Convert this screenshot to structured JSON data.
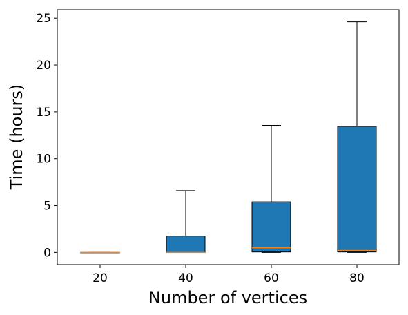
{
  "chart_data": {
    "type": "boxplot",
    "title": "",
    "xlabel": "Number of vertices",
    "ylabel": "Time (hours)",
    "categories": [
      "20",
      "40",
      "60",
      "80"
    ],
    "boxes": [
      {
        "category": "20",
        "whisker_low": 0.0,
        "q1": 0.0,
        "median": 0.0,
        "q3": 0.0,
        "whisker_high": 0.0
      },
      {
        "category": "40",
        "whisker_low": 0.0,
        "q1": 0.0,
        "median": 0.0,
        "q3": 1.75,
        "whisker_high": 6.6
      },
      {
        "category": "60",
        "whisker_low": 0.0,
        "q1": 0.05,
        "median": 0.5,
        "q3": 5.4,
        "whisker_high": 13.55
      },
      {
        "category": "80",
        "whisker_low": 0.0,
        "q1": 0.05,
        "median": 0.2,
        "q3": 13.45,
        "whisker_high": 24.6
      }
    ],
    "ylim": [
      -1.3,
      25.9
    ],
    "yticks": [
      0,
      5,
      10,
      15,
      20,
      25
    ],
    "grid": false,
    "legend": "none",
    "colors": {
      "box_fill": "#1f77b4",
      "median": "#ff7f0e",
      "lines": "#000000"
    }
  }
}
